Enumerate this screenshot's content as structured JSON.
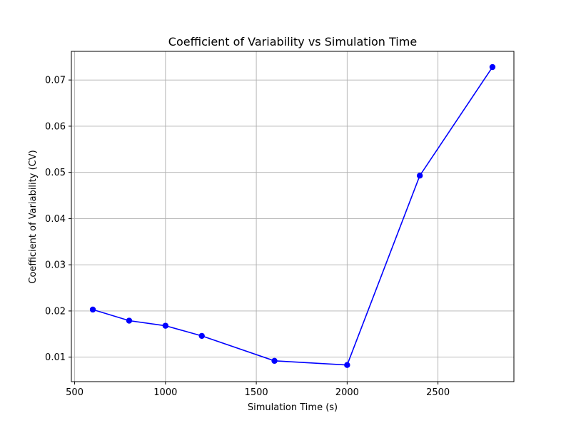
{
  "chart_data": {
    "type": "line",
    "title": "Coefficient of Variability vs Simulation Time",
    "xlabel": "Simulation Time (s)",
    "ylabel": "Coefficient of Variability (CV)",
    "xlim": [
      482,
      2918
    ],
    "ylim": [
      0.0047,
      0.0762
    ],
    "xticks": [
      500,
      1000,
      1500,
      2000,
      2500
    ],
    "yticks": [
      0.01,
      0.02,
      0.03,
      0.04,
      0.05,
      0.06,
      0.07
    ],
    "xtick_labels": [
      "500",
      "1000",
      "1500",
      "2000",
      "2500"
    ],
    "ytick_labels": [
      "0.01",
      "0.02",
      "0.03",
      "0.04",
      "0.05",
      "0.06",
      "0.07"
    ],
    "grid": true,
    "x": [
      600,
      800,
      1000,
      1200,
      1600,
      2000,
      2400,
      2800
    ],
    "series": [
      {
        "values": [
          0.0203,
          0.0179,
          0.0168,
          0.0146,
          0.0092,
          0.0083,
          0.0493,
          0.0728
        ],
        "color": "#0000ff",
        "marker": "circle"
      }
    ],
    "colors": {
      "grid": "#b0b0b0",
      "axes": "#000000",
      "background": "#ffffff"
    }
  }
}
